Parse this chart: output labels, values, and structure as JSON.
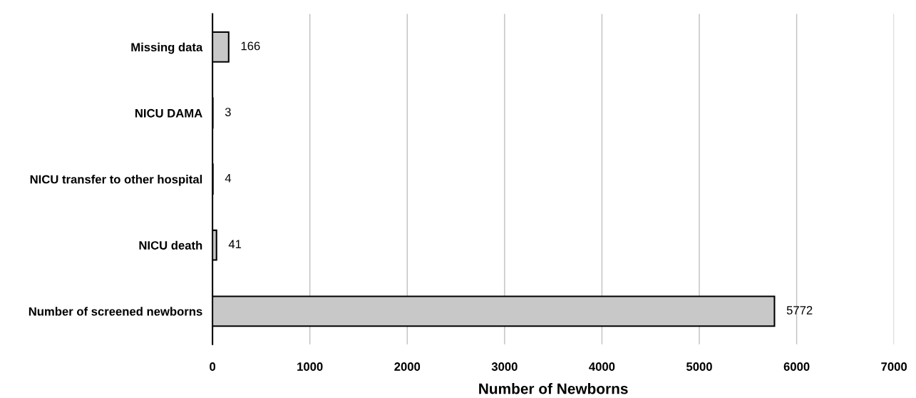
{
  "chart_data": {
    "type": "bar",
    "orientation": "horizontal",
    "xlabel": "Number of Newborns",
    "categories": [
      "Missing data",
      "NICU DAMA",
      "NICU transfer to other hospital",
      "NICU death",
      "Number of screened newborns"
    ],
    "values": [
      166,
      3,
      4,
      41,
      5772
    ],
    "color": "#c8c8c8",
    "xlim": [
      0,
      7000
    ],
    "xticks": [
      0,
      1000,
      2000,
      3000,
      4000,
      5000,
      6000,
      7000
    ],
    "grid": "x",
    "data_labels": true
  }
}
